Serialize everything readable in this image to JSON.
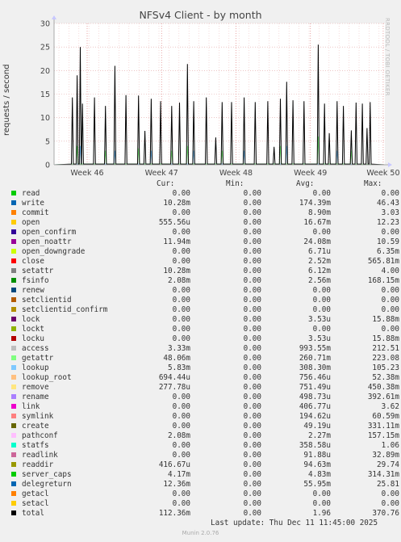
{
  "title": "NFSv4 Client - by month",
  "watermark": "RRDTOOL / TOBI OETIKER",
  "last_update": "Last update: Thu Dec 11 11:45:00 2025",
  "version": "Munin 2.0.76",
  "legend_headers": {
    "cur": "Cur:",
    "min": "Min:",
    "avg": "Avg:",
    "max": "Max:"
  },
  "legend": [
    {
      "name": "read",
      "color": "#00cc00",
      "cur": "0.00",
      "min": "0.00",
      "avg": "0.00",
      "max": "0.00"
    },
    {
      "name": "write",
      "color": "#0066b3",
      "cur": "10.28m",
      "min": "0.00",
      "avg": "174.39m",
      "max": "46.43"
    },
    {
      "name": "commit",
      "color": "#ff8000",
      "cur": "0.00",
      "min": "0.00",
      "avg": "8.90m",
      "max": "3.03"
    },
    {
      "name": "open",
      "color": "#ffcc00",
      "cur": "555.56u",
      "min": "0.00",
      "avg": "16.67m",
      "max": "12.23"
    },
    {
      "name": "open_confirm",
      "color": "#330099",
      "cur": "0.00",
      "min": "0.00",
      "avg": "0.00",
      "max": "0.00"
    },
    {
      "name": "open_noattr",
      "color": "#990099",
      "cur": "11.94m",
      "min": "0.00",
      "avg": "24.08m",
      "max": "10.59"
    },
    {
      "name": "open_downgrade",
      "color": "#ccff00",
      "cur": "0.00",
      "min": "0.00",
      "avg": "6.71u",
      "max": "6.35m"
    },
    {
      "name": "close",
      "color": "#ff0000",
      "cur": "0.00",
      "min": "0.00",
      "avg": "2.52m",
      "max": "565.81m"
    },
    {
      "name": "setattr",
      "color": "#808080",
      "cur": "10.28m",
      "min": "0.00",
      "avg": "6.12m",
      "max": "4.00"
    },
    {
      "name": "fsinfo",
      "color": "#008f00",
      "cur": "2.08m",
      "min": "0.00",
      "avg": "2.56m",
      "max": "168.15m"
    },
    {
      "name": "renew",
      "color": "#00487d",
      "cur": "0.00",
      "min": "0.00",
      "avg": "0.00",
      "max": "0.00"
    },
    {
      "name": "setclientid",
      "color": "#b35a00",
      "cur": "0.00",
      "min": "0.00",
      "avg": "0.00",
      "max": "0.00"
    },
    {
      "name": "setclientid_confirm",
      "color": "#b38f00",
      "cur": "0.00",
      "min": "0.00",
      "avg": "0.00",
      "max": "0.00"
    },
    {
      "name": "lock",
      "color": "#6b006b",
      "cur": "0.00",
      "min": "0.00",
      "avg": "3.53u",
      "max": "15.88m"
    },
    {
      "name": "lockt",
      "color": "#8fb300",
      "cur": "0.00",
      "min": "0.00",
      "avg": "0.00",
      "max": "0.00"
    },
    {
      "name": "locku",
      "color": "#b30000",
      "cur": "0.00",
      "min": "0.00",
      "avg": "3.53u",
      "max": "15.88m"
    },
    {
      "name": "access",
      "color": "#bebebe",
      "cur": "3.33m",
      "min": "0.00",
      "avg": "993.55m",
      "max": "212.51"
    },
    {
      "name": "getattr",
      "color": "#80ff80",
      "cur": "48.06m",
      "min": "0.00",
      "avg": "260.71m",
      "max": "223.08"
    },
    {
      "name": "lookup",
      "color": "#80c9ff",
      "cur": "5.83m",
      "min": "0.00",
      "avg": "308.30m",
      "max": "105.23"
    },
    {
      "name": "lookup_root",
      "color": "#ffc080",
      "cur": "694.44u",
      "min": "0.00",
      "avg": "756.46u",
      "max": "52.38m"
    },
    {
      "name": "remove",
      "color": "#ffe680",
      "cur": "277.78u",
      "min": "0.00",
      "avg": "751.49u",
      "max": "450.38m"
    },
    {
      "name": "rename",
      "color": "#aa80ff",
      "cur": "0.00",
      "min": "0.00",
      "avg": "498.73u",
      "max": "392.61m"
    },
    {
      "name": "link",
      "color": "#ee00cc",
      "cur": "0.00",
      "min": "0.00",
      "avg": "406.77u",
      "max": "3.62"
    },
    {
      "name": "symlink",
      "color": "#ff8080",
      "cur": "0.00",
      "min": "0.00",
      "avg": "194.62u",
      "max": "60.59m"
    },
    {
      "name": "create",
      "color": "#666600",
      "cur": "0.00",
      "min": "0.00",
      "avg": "49.19u",
      "max": "331.11m"
    },
    {
      "name": "pathconf",
      "color": "#ffbfff",
      "cur": "2.08m",
      "min": "0.00",
      "avg": "2.27m",
      "max": "157.15m"
    },
    {
      "name": "statfs",
      "color": "#00ffcc",
      "cur": "0.00",
      "min": "0.00",
      "avg": "358.58u",
      "max": "1.06"
    },
    {
      "name": "readlink",
      "color": "#cc6699",
      "cur": "0.00",
      "min": "0.00",
      "avg": "91.88u",
      "max": "32.89m"
    },
    {
      "name": "readdir",
      "color": "#999900",
      "cur": "416.67u",
      "min": "0.00",
      "avg": "94.63m",
      "max": "29.74"
    },
    {
      "name": "server_caps",
      "color": "#00cc00",
      "cur": "4.17m",
      "min": "0.00",
      "avg": "4.83m",
      "max": "314.31m"
    },
    {
      "name": "delegreturn",
      "color": "#0066b3",
      "cur": "12.36m",
      "min": "0.00",
      "avg": "55.95m",
      "max": "25.81"
    },
    {
      "name": "getacl",
      "color": "#ff8000",
      "cur": "0.00",
      "min": "0.00",
      "avg": "0.00",
      "max": "0.00"
    },
    {
      "name": "setacl",
      "color": "#ffcc00",
      "cur": "0.00",
      "min": "0.00",
      "avg": "0.00",
      "max": "0.00"
    },
    {
      "name": "total",
      "color": "#000000",
      "cur": "112.36m",
      "min": "0.00",
      "avg": "1.96",
      "max": "370.76"
    }
  ],
  "chart_data": {
    "type": "line",
    "title": "NFSv4 Client - by month",
    "ylabel": "requests / second",
    "xlabel": "",
    "ylim": [
      0,
      30
    ],
    "yticks": [
      0,
      5,
      10,
      15,
      20,
      25,
      30
    ],
    "x_tick_labels": [
      "Week 46",
      "Week 47",
      "Week 48",
      "Week 49",
      "Week 50"
    ],
    "x_tick_positions": [
      0.1,
      0.325,
      0.55,
      0.775,
      0.995
    ],
    "grid": true,
    "series": [
      {
        "name": "total",
        "color": "#000000",
        "spikes": [
          [
            0.03,
            14.3
          ],
          [
            0.045,
            19
          ],
          [
            0.055,
            25
          ],
          [
            0.062,
            13
          ],
          [
            0.1,
            14.3
          ],
          [
            0.135,
            12.5
          ],
          [
            0.165,
            21
          ],
          [
            0.2,
            14.8
          ],
          [
            0.24,
            14.7
          ],
          [
            0.26,
            7.2
          ],
          [
            0.28,
            14
          ],
          [
            0.31,
            13.5
          ],
          [
            0.345,
            12.5
          ],
          [
            0.37,
            13.2
          ],
          [
            0.395,
            21.4
          ],
          [
            0.415,
            13.5
          ],
          [
            0.455,
            14.3
          ],
          [
            0.485,
            5.8
          ],
          [
            0.505,
            13.3
          ],
          [
            0.535,
            13.3
          ],
          [
            0.575,
            14.3
          ],
          [
            0.61,
            13.3
          ],
          [
            0.65,
            13.5
          ],
          [
            0.67,
            3.8
          ],
          [
            0.69,
            14
          ],
          [
            0.71,
            17.6
          ],
          [
            0.73,
            13.7
          ],
          [
            0.765,
            13.5
          ],
          [
            0.81,
            25.5
          ],
          [
            0.83,
            13
          ],
          [
            0.845,
            6.7
          ],
          [
            0.87,
            13.5
          ],
          [
            0.89,
            12.5
          ],
          [
            0.915,
            7.3
          ],
          [
            0.93,
            13.2
          ],
          [
            0.95,
            13
          ],
          [
            0.965,
            7.8
          ],
          [
            0.975,
            13.3
          ],
          [
            1.025,
            8
          ],
          [
            1.03,
            13.5
          ],
          [
            1.065,
            15
          ],
          [
            1.1,
            13.7
          ]
        ]
      },
      {
        "name": "getattr",
        "color": "#80ff80",
        "spikes": [
          [
            0.045,
            4
          ],
          [
            0.135,
            3
          ],
          [
            0.24,
            3.5
          ],
          [
            0.345,
            3
          ],
          [
            0.395,
            4
          ],
          [
            0.505,
            3
          ],
          [
            0.69,
            4
          ],
          [
            0.81,
            6
          ],
          [
            0.915,
            3
          ],
          [
            1.065,
            3
          ]
        ]
      },
      {
        "name": "lookup",
        "color": "#80c9ff",
        "spikes": [
          [
            0.055,
            4
          ],
          [
            0.165,
            3
          ],
          [
            0.28,
            3
          ],
          [
            0.415,
            3
          ],
          [
            0.575,
            3
          ],
          [
            0.71,
            4
          ],
          [
            0.87,
            3
          ],
          [
            1.03,
            3
          ]
        ]
      }
    ]
  }
}
